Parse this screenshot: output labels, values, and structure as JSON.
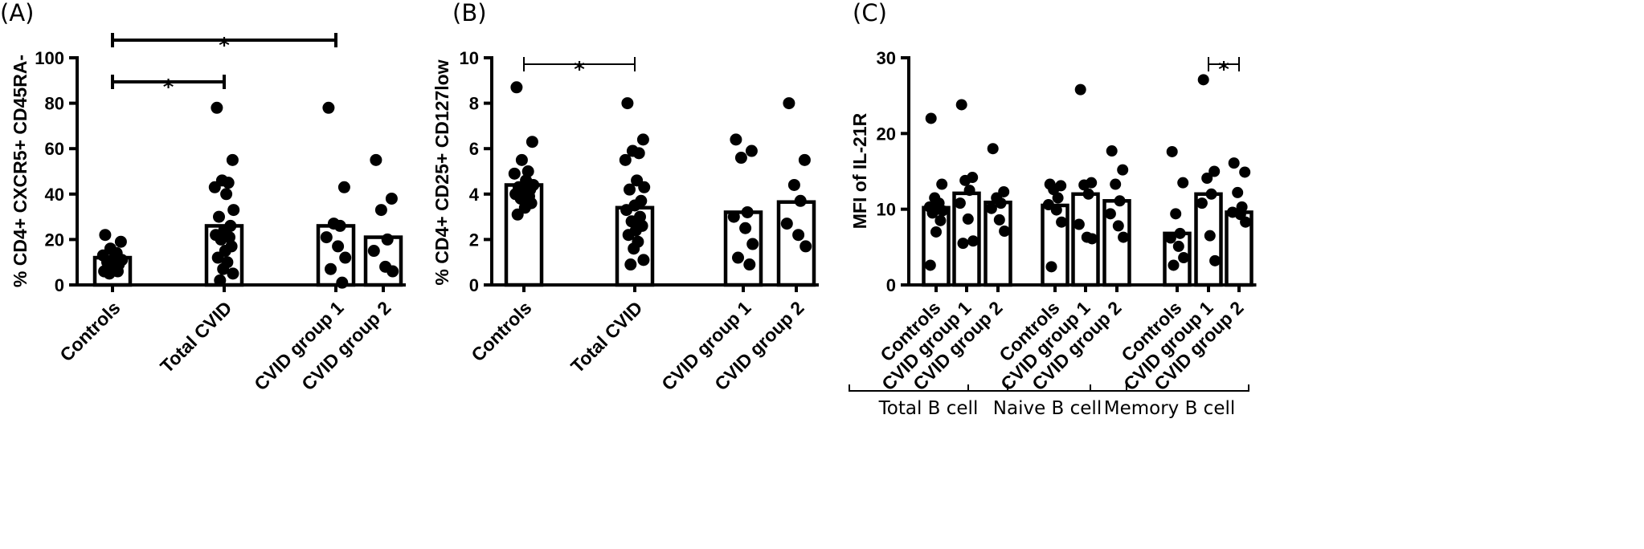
{
  "chart_data": [
    {
      "type": "bar",
      "panel_label": "(A)",
      "ylabel": "% CD4+ CXCR5+ CD45RA-",
      "ylim": [
        0,
        100
      ],
      "yticks": [
        "0",
        "20",
        "40",
        "60",
        "80",
        "100"
      ],
      "categories": [
        "Controls",
        "Total CVID",
        "CVID group 1",
        "CVID group 2"
      ],
      "values": [
        12,
        26,
        26,
        21
      ],
      "points": [
        [
          22,
          19,
          16,
          14,
          13,
          12,
          11,
          10,
          9,
          8,
          6,
          6,
          5
        ],
        [
          78,
          55,
          46,
          45,
          43,
          40,
          33,
          30,
          26,
          24,
          22,
          21,
          20,
          17,
          15,
          12,
          10,
          7,
          5,
          2
        ],
        [
          78,
          43,
          27,
          26,
          21,
          17,
          12,
          7,
          1
        ],
        [
          55,
          38,
          33,
          20,
          15,
          8,
          6
        ]
      ],
      "significance": [
        {
          "from": 0,
          "to": 2,
          "label": "*"
        },
        {
          "from": 0,
          "to": 1,
          "label": "*"
        }
      ]
    },
    {
      "type": "bar",
      "panel_label": "(B)",
      "ylabel": "% CD4+ CD25+ CD127low",
      "ylim": [
        0,
        10
      ],
      "yticks": [
        "0",
        "2",
        "4",
        "6",
        "8",
        "10"
      ],
      "categories": [
        "Controls",
        "Total CVID",
        "CVID group 1",
        "CVID group 2"
      ],
      "values": [
        4.4,
        3.4,
        3.2,
        3.65
      ],
      "points": [
        [
          8.7,
          6.3,
          5.5,
          5.0,
          4.9,
          4.6,
          4.4,
          4.3,
          4.2,
          4.1,
          4.0,
          3.9,
          3.8,
          3.6,
          3.4,
          3.1
        ],
        [
          8.0,
          6.4,
          5.9,
          5.8,
          5.5,
          4.6,
          4.3,
          4.2,
          3.7,
          3.5,
          3.3,
          3.0,
          2.8,
          2.6,
          2.4,
          2.2,
          1.9,
          1.6,
          1.1,
          0.9
        ],
        [
          6.4,
          5.9,
          5.6,
          3.2,
          3.0,
          2.5,
          1.8,
          1.2,
          0.9
        ],
        [
          8.0,
          5.5,
          4.4,
          3.7,
          2.7,
          2.2,
          1.7
        ]
      ],
      "significance": [
        {
          "from": 0,
          "to": 1,
          "label": "*"
        }
      ]
    },
    {
      "type": "bar",
      "panel_label": "(C)",
      "ylabel": "MFI of IL-21R",
      "ylim": [
        0,
        30
      ],
      "yticks": [
        "0",
        "10",
        "20",
        "30"
      ],
      "categories": [
        "Controls",
        "CVID group 1",
        "CVID group 2",
        "Controls",
        "CVID group 1",
        "CVID group 2",
        "Controls",
        "CVID group 1",
        "CVID group 2"
      ],
      "groups": [
        {
          "label": "Total B cell",
          "start": 0,
          "end": 2
        },
        {
          "label": "Naive B cell",
          "start": 3,
          "end": 5
        },
        {
          "label": "Memory B cell",
          "start": 6,
          "end": 8
        }
      ],
      "values": [
        10.2,
        12.1,
        10.9,
        10.5,
        12.0,
        11.1,
        6.8,
        12.0,
        9.6
      ],
      "points": [
        [
          22,
          13.3,
          11.5,
          10.8,
          10.3,
          10.0,
          9.8,
          9.5,
          8.5,
          7.0,
          2.6
        ],
        [
          23.8,
          14.2,
          13.8,
          12.5,
          10.8,
          8.7,
          5.8,
          5.5
        ],
        [
          18.0,
          12.3,
          11.5,
          10.8,
          10.1,
          8.6,
          7.1
        ],
        [
          13.3,
          13.1,
          12.6,
          11.5,
          10.6,
          9.9,
          8.3,
          2.4
        ],
        [
          25.8,
          13.5,
          13.2,
          12.0,
          8.0,
          6.3,
          6.1
        ],
        [
          17.7,
          15.2,
          13.3,
          11.1,
          9.4,
          7.8,
          6.3
        ],
        [
          17.6,
          13.5,
          9.4,
          6.8,
          6.2,
          5.1,
          3.6,
          2.6
        ],
        [
          27.1,
          15.0,
          14.1,
          12.0,
          10.8,
          6.5,
          3.2
        ],
        [
          16.1,
          14.9,
          12.2,
          10.3,
          9.6,
          9.3,
          8.3
        ]
      ],
      "significance": [
        {
          "from": 7,
          "to": 8,
          "label": "*"
        }
      ]
    }
  ]
}
